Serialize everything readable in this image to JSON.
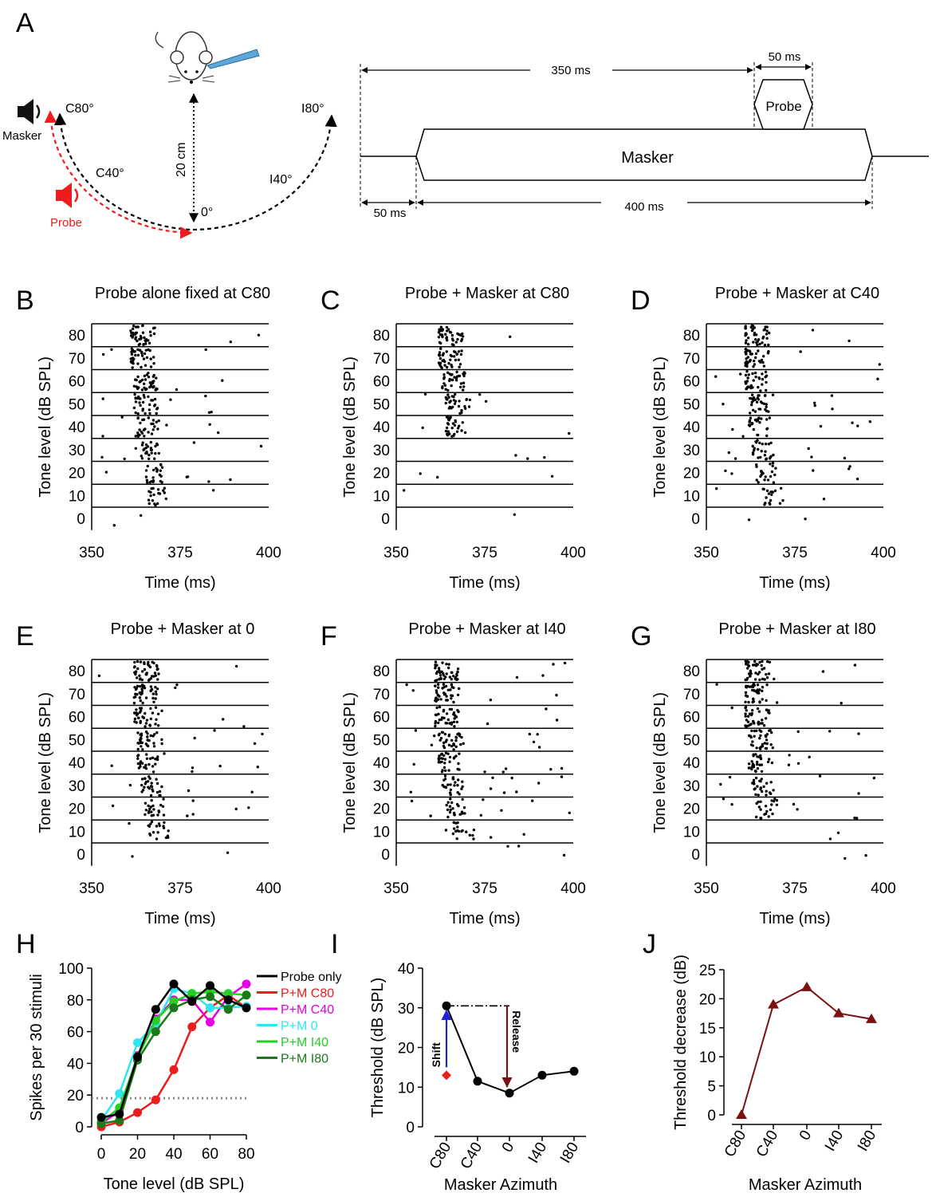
{
  "panel_letters": [
    "A",
    "B",
    "C",
    "D",
    "E",
    "F",
    "G",
    "H",
    "I",
    "J"
  ],
  "schematic": {
    "masker_label": "Masker",
    "probe_label": "Probe",
    "c80": "C80°",
    "c40": "C40°",
    "zero": "0°",
    "i40": "I40°",
    "i80": "I80°",
    "distance": "20 cm"
  },
  "timeline": {
    "t350": "350 ms",
    "t50_top": "50 ms",
    "probe": "Probe",
    "masker": "Masker",
    "t50_bottom": "50 ms",
    "t400": "400 ms"
  },
  "raster": {
    "ylabel": "Tone level (dB SPL)",
    "xlabel": "Time (ms)",
    "levels": [
      "80",
      "70",
      "60",
      "50",
      "40",
      "30",
      "20",
      "10",
      "0"
    ],
    "xticks": [
      "350",
      "375",
      "400"
    ]
  },
  "colors": {
    "probe_only": "#000000",
    "pm_c80": "#ee1c1c",
    "pm_c40": "#e600e6",
    "pm_0": "#2fe6f0",
    "pm_i40": "#25d025",
    "pm_i80": "#1a7a1a",
    "threshold_line": "#7a1010",
    "shift_arrow": "#1f22d6",
    "red_marker": "#ee1c1c"
  },
  "chart_data": [
    {
      "id": "B",
      "type": "scatter",
      "title": "Probe alone fixed at C80",
      "xlabel": "Time (ms)",
      "ylabel": "Tone level (dB SPL)",
      "xlim": [
        350,
        400
      ],
      "levels": [
        80,
        70,
        60,
        50,
        40,
        30,
        20,
        10,
        0
      ],
      "burst_start_by_level": [
        361,
        361,
        362,
        362,
        363,
        364,
        365,
        366,
        null
      ],
      "late_density": "moderate"
    },
    {
      "id": "C",
      "type": "scatter",
      "title": "Probe + Masker at C80",
      "xlabel": "Time (ms)",
      "ylabel": "Tone level (dB SPL)",
      "xlim": [
        350,
        400
      ],
      "levels": [
        80,
        70,
        60,
        50,
        40,
        30,
        20,
        10,
        0
      ],
      "burst_start_by_level": [
        362,
        362,
        363,
        364,
        364,
        null,
        null,
        null,
        null
      ],
      "late_density": "sparse"
    },
    {
      "id": "D",
      "type": "scatter",
      "title": "Probe + Masker at C40",
      "xlabel": "Time (ms)",
      "ylabel": "Tone level (dB SPL)",
      "xlim": [
        350,
        400
      ],
      "levels": [
        80,
        70,
        60,
        50,
        40,
        30,
        20,
        10,
        0
      ],
      "burst_start_by_level": [
        361,
        361,
        361,
        362,
        362,
        363,
        364,
        366,
        null
      ],
      "late_density": "moderate"
    },
    {
      "id": "E",
      "type": "scatter",
      "title": "Probe + Masker at 0",
      "xlabel": "Time (ms)",
      "ylabel": "Tone level (dB SPL)",
      "xlim": [
        350,
        400
      ],
      "levels": [
        80,
        70,
        60,
        50,
        40,
        30,
        20,
        10,
        0
      ],
      "burst_start_by_level": [
        362,
        362,
        362,
        363,
        363,
        364,
        365,
        366,
        null
      ],
      "late_density": "moderate"
    },
    {
      "id": "F",
      "type": "scatter",
      "title": "Probe + Masker at I40",
      "xlabel": "Time (ms)",
      "ylabel": "Tone level (dB SPL)",
      "xlim": [
        350,
        400
      ],
      "levels": [
        80,
        70,
        60,
        50,
        40,
        30,
        20,
        10,
        0
      ],
      "burst_start_by_level": [
        361,
        361,
        361,
        362,
        362,
        363,
        364,
        366,
        null
      ],
      "late_density": "dense"
    },
    {
      "id": "G",
      "type": "scatter",
      "title": "Probe + Masker at I80",
      "xlabel": "Time (ms)",
      "ylabel": "Tone level (dB SPL)",
      "xlim": [
        350,
        400
      ],
      "levels": [
        80,
        70,
        60,
        50,
        40,
        30,
        20,
        10,
        0
      ],
      "burst_start_by_level": [
        361,
        361,
        361,
        362,
        362,
        363,
        364,
        null,
        null
      ],
      "late_density": "moderate"
    },
    {
      "id": "H",
      "type": "line",
      "xlabel": "Tone level (dB SPL)",
      "ylabel": "Spikes per 30 stimuli",
      "xlim": [
        0,
        80
      ],
      "ylim": [
        0,
        100
      ],
      "xticks": [
        0,
        20,
        40,
        60,
        80
      ],
      "yticks": [
        0,
        20,
        40,
        60,
        80,
        100
      ],
      "x": [
        0,
        10,
        20,
        30,
        40,
        50,
        60,
        70,
        80
      ],
      "reference_line": 18,
      "series": [
        {
          "name": "Probe only",
          "values": [
            6,
            8,
            44,
            74,
            90,
            79,
            89,
            80,
            75
          ]
        },
        {
          "name": "P+M C80",
          "values": [
            0,
            3,
            9,
            17,
            36,
            63,
            75,
            83,
            75
          ]
        },
        {
          "name": "P+M C40",
          "values": [
            2,
            10,
            45,
            68,
            80,
            80,
            66,
            82,
            90
          ]
        },
        {
          "name": "P+M 0",
          "values": [
            4,
            21,
            53,
            65,
            87,
            84,
            75,
            75,
            76
          ]
        },
        {
          "name": "P+M I40",
          "values": [
            3,
            12,
            44,
            67,
            79,
            84,
            85,
            84,
            83
          ]
        },
        {
          "name": "P+M I80",
          "values": [
            2,
            4,
            42,
            60,
            75,
            80,
            82,
            74,
            83
          ]
        }
      ]
    },
    {
      "id": "I",
      "type": "line",
      "xlabel": "Masker Azimuth",
      "ylabel": "Threshold (dB SPL)",
      "ylim": [
        0,
        40
      ],
      "yticks": [
        0,
        10,
        20,
        30,
        40
      ],
      "categories": [
        "C80",
        "C40",
        "0",
        "I40",
        "I80"
      ],
      "values": [
        30.5,
        11.5,
        8.5,
        13,
        14
      ],
      "probe_alone_threshold": 13,
      "annotations": [
        "Shift",
        "Release"
      ]
    },
    {
      "id": "J",
      "type": "line",
      "xlabel": "Masker Azimuth",
      "ylabel": "Threshold decrease (dB)",
      "ylim": [
        0,
        25
      ],
      "yticks": [
        0,
        5,
        10,
        15,
        20,
        25
      ],
      "categories": [
        "C80",
        "C40",
        "0",
        "I40",
        "I80"
      ],
      "values": [
        0,
        19,
        22,
        17.5,
        16.5
      ]
    }
  ]
}
